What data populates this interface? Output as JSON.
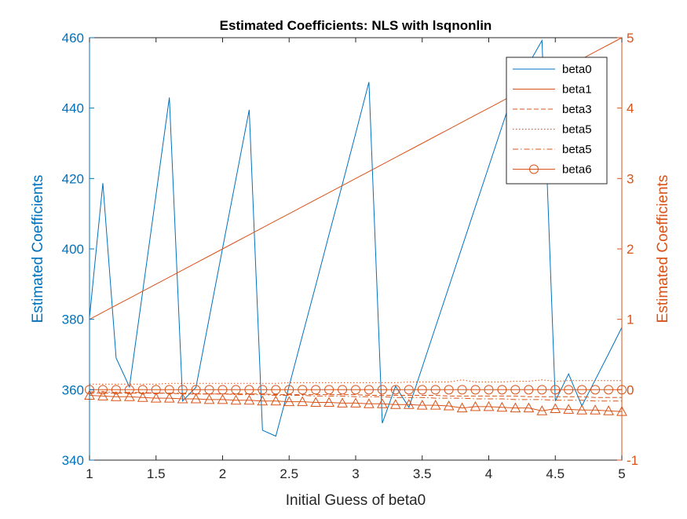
{
  "chart_data": {
    "type": "line",
    "title": "Estimated Coefficients: NLS with lsqnonlin",
    "xlabel": "Initial Guess of beta0",
    "ylabel_left": "Estimated Coefficients",
    "ylabel_right": "Estimated Coefficients",
    "xlim": [
      1,
      5
    ],
    "ylim_left": [
      340,
      460
    ],
    "ylim_right": [
      -1,
      5
    ],
    "xticks": [
      "1",
      "1.5",
      "2",
      "2.5",
      "3",
      "3.5",
      "4",
      "4.5",
      "5"
    ],
    "yticks_left": [
      "340",
      "360",
      "380",
      "400",
      "420",
      "440",
      "460"
    ],
    "yticks_right": [
      "-1",
      "0",
      "1",
      "2",
      "3",
      "4",
      "5"
    ],
    "grid": false,
    "legend_position": "top-right",
    "colors": {
      "left": "#0072BD",
      "right": "#D95319"
    },
    "x": [
      1.0,
      1.1,
      1.2,
      1.3,
      1.4,
      1.5,
      1.6,
      1.7,
      1.8,
      1.9,
      2.0,
      2.1,
      2.2,
      2.3,
      2.4,
      2.5,
      2.6,
      2.7,
      2.8,
      2.9,
      3.0,
      3.1,
      3.2,
      3.3,
      3.4,
      3.5,
      3.6,
      3.7,
      3.8,
      3.9,
      4.0,
      4.1,
      4.2,
      4.3,
      4.4,
      4.5,
      4.6,
      4.7,
      4.8,
      4.9,
      5.0
    ],
    "series": [
      {
        "name": "beta0",
        "axis": "left",
        "style": "solid",
        "marker": "none",
        "values": [
          380.5,
          418.7,
          369.0,
          360.8,
          388.0,
          415.5,
          443.0,
          356.8,
          360.7,
          380.4,
          400.2,
          419.9,
          439.5,
          348.5,
          346.8,
          361.1,
          375.4,
          389.7,
          404.1,
          418.4,
          432.8,
          447.4,
          350.5,
          361.0,
          355.0,
          366.4,
          377.8,
          389.2,
          400.6,
          412.0,
          423.4,
          434.8,
          446.2,
          452.6,
          459.2,
          356.8,
          364.5,
          355.4,
          362.8,
          370.2,
          377.7
        ]
      },
      {
        "name": "beta1",
        "axis": "right",
        "style": "solid",
        "marker": "none",
        "values": [
          1.0,
          1.1,
          1.2,
          1.3,
          1.4,
          1.5,
          1.6,
          1.7,
          1.8,
          1.9,
          2.0,
          2.1,
          2.2,
          2.3,
          2.4,
          2.5,
          2.6,
          2.7,
          2.8,
          2.9,
          3.0,
          3.1,
          3.2,
          3.3,
          3.4,
          3.5,
          3.6,
          3.7,
          3.8,
          3.9,
          4.0,
          4.1,
          4.2,
          4.3,
          4.4,
          4.5,
          4.6,
          4.7,
          4.8,
          4.9,
          5.0
        ]
      },
      {
        "name": "beta3",
        "axis": "right",
        "style": "dashed",
        "marker": "none",
        "values": [
          -0.05,
          -0.05,
          -0.05,
          -0.05,
          -0.05,
          -0.05,
          -0.05,
          -0.06,
          -0.06,
          -0.06,
          -0.06,
          -0.06,
          -0.06,
          -0.06,
          -0.07,
          -0.07,
          -0.07,
          -0.07,
          -0.07,
          -0.07,
          -0.07,
          -0.08,
          -0.08,
          -0.08,
          -0.08,
          -0.08,
          -0.08,
          -0.09,
          -0.09,
          -0.09,
          -0.09,
          -0.09,
          -0.09,
          -0.1,
          -0.1,
          -0.1,
          -0.1,
          -0.1,
          -0.11,
          -0.11,
          -0.11
        ]
      },
      {
        "name": "beta5",
        "axis": "right",
        "style": "dotted",
        "marker": "none",
        "values": [
          0.08,
          0.08,
          0.08,
          0.08,
          0.08,
          0.08,
          0.09,
          0.09,
          0.09,
          0.09,
          0.09,
          0.09,
          0.09,
          0.09,
          0.09,
          0.1,
          0.1,
          0.1,
          0.1,
          0.1,
          0.1,
          0.1,
          0.1,
          0.1,
          0.11,
          0.11,
          0.11,
          0.11,
          0.14,
          0.11,
          0.11,
          0.11,
          0.12,
          0.12,
          0.14,
          0.12,
          0.13,
          0.13,
          0.13,
          0.13,
          0.13
        ]
      },
      {
        "name": "beta5",
        "axis": "right",
        "style": "dashdot",
        "marker": "none",
        "values": [
          -0.03,
          -0.03,
          -0.04,
          -0.04,
          -0.04,
          -0.05,
          -0.05,
          -0.05,
          -0.06,
          -0.06,
          -0.06,
          -0.07,
          -0.07,
          -0.07,
          -0.08,
          -0.08,
          -0.08,
          -0.09,
          -0.09,
          -0.09,
          -0.1,
          -0.1,
          -0.1,
          -0.11,
          -0.11,
          -0.11,
          -0.12,
          -0.12,
          -0.12,
          -0.13,
          -0.13,
          -0.13,
          -0.14,
          -0.14,
          -0.14,
          -0.15,
          -0.15,
          -0.15,
          -0.16,
          -0.16,
          -0.16
        ]
      },
      {
        "name": "beta6",
        "axis": "right",
        "style": "solid",
        "marker": "circle",
        "values": [
          0.0,
          0.0,
          0.0,
          0.0,
          0.0,
          0.0,
          0.0,
          0.0,
          0.0,
          0.0,
          0.0,
          0.0,
          0.0,
          0.0,
          0.0,
          0.0,
          0.0,
          0.0,
          0.0,
          0.0,
          0.0,
          0.0,
          0.0,
          0.0,
          0.0,
          0.0,
          0.0,
          0.0,
          0.0,
          0.0,
          0.0,
          0.0,
          0.0,
          0.0,
          0.0,
          0.0,
          0.0,
          0.0,
          0.0,
          0.0,
          0.0
        ]
      },
      {
        "name": "",
        "axis": "right",
        "style": "solid",
        "marker": "triangle",
        "in_legend": false,
        "values": [
          -0.08,
          -0.09,
          -0.1,
          -0.1,
          -0.11,
          -0.12,
          -0.12,
          -0.13,
          -0.13,
          -0.14,
          -0.14,
          -0.15,
          -0.15,
          -0.16,
          -0.16,
          -0.17,
          -0.17,
          -0.18,
          -0.18,
          -0.19,
          -0.19,
          -0.2,
          -0.2,
          -0.21,
          -0.21,
          -0.22,
          -0.22,
          -0.23,
          -0.26,
          -0.24,
          -0.24,
          -0.25,
          -0.26,
          -0.26,
          -0.3,
          -0.27,
          -0.28,
          -0.29,
          -0.29,
          -0.3,
          -0.31
        ]
      }
    ]
  }
}
